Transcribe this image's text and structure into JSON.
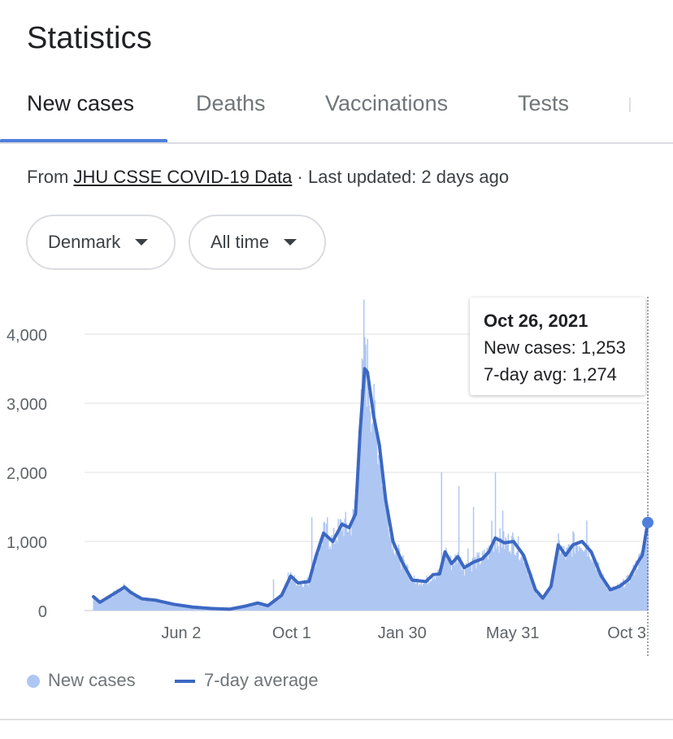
{
  "header": {
    "title": "Statistics"
  },
  "tabs": [
    {
      "label": "New cases",
      "active": true
    },
    {
      "label": "Deaths",
      "active": false
    },
    {
      "label": "Vaccinations",
      "active": false
    },
    {
      "label": "Tests",
      "active": false
    }
  ],
  "source": {
    "prefix": "From ",
    "link_text": "JHU CSSE COVID-19 Data",
    "suffix": " · Last updated: 2 days ago"
  },
  "filters": {
    "region": "Denmark",
    "range": "All time"
  },
  "tooltip": {
    "date": "Oct 26, 2021",
    "new_cases_label": "New cases:",
    "new_cases_value": "1,253",
    "avg_label": "7-day avg:",
    "avg_value": "1,274"
  },
  "legend": {
    "bars_label": "New cases",
    "line_label": "7-day average"
  },
  "colors": {
    "bars": "#aec6f2",
    "line": "#3c68c2",
    "accent": "#4f7fdb"
  },
  "chart_data": {
    "type": "bar",
    "ylim": [
      0,
      4000
    ],
    "y_ticks": [
      "0",
      "1,000",
      "2,000",
      "3,000",
      "4,000"
    ],
    "x_tick_labels": [
      "Jun 2",
      "Oct 1",
      "Jan 30",
      "May 31",
      "Oct 3"
    ],
    "x_tick_dates": [
      "2020-06-02",
      "2020-10-01",
      "2021-01-30",
      "2021-05-31",
      "2021-10-03"
    ],
    "x_start": "2020-02-27",
    "x_end": "2021-10-26",
    "avg_keypoints": [
      [
        "2020-02-27",
        200
      ],
      [
        "2020-03-05",
        120
      ],
      [
        "2020-03-15",
        200
      ],
      [
        "2020-03-25",
        280
      ],
      [
        "2020-04-01",
        340
      ],
      [
        "2020-04-08",
        260
      ],
      [
        "2020-04-20",
        170
      ],
      [
        "2020-05-05",
        150
      ],
      [
        "2020-05-25",
        90
      ],
      [
        "2020-06-15",
        50
      ],
      [
        "2020-07-05",
        30
      ],
      [
        "2020-07-25",
        20
      ],
      [
        "2020-08-10",
        60
      ],
      [
        "2020-08-25",
        110
      ],
      [
        "2020-09-05",
        70
      ],
      [
        "2020-09-20",
        220
      ],
      [
        "2020-09-30",
        500
      ],
      [
        "2020-10-08",
        400
      ],
      [
        "2020-10-20",
        420
      ],
      [
        "2020-10-28",
        800
      ],
      [
        "2020-11-05",
        1120
      ],
      [
        "2020-11-15",
        1000
      ],
      [
        "2020-11-25",
        1250
      ],
      [
        "2020-12-03",
        1200
      ],
      [
        "2020-12-10",
        1400
      ],
      [
        "2020-12-15",
        2600
      ],
      [
        "2020-12-20",
        3500
      ],
      [
        "2020-12-23",
        3450
      ],
      [
        "2020-12-30",
        2800
      ],
      [
        "2021-01-05",
        2400
      ],
      [
        "2021-01-12",
        1600
      ],
      [
        "2021-01-20",
        1000
      ],
      [
        "2021-01-30",
        700
      ],
      [
        "2021-02-10",
        440
      ],
      [
        "2021-02-25",
        420
      ],
      [
        "2021-03-05",
        520
      ],
      [
        "2021-03-12",
        530
      ],
      [
        "2021-03-18",
        850
      ],
      [
        "2021-03-25",
        680
      ],
      [
        "2021-04-01",
        780
      ],
      [
        "2021-04-08",
        620
      ],
      [
        "2021-04-18",
        700
      ],
      [
        "2021-04-28",
        750
      ],
      [
        "2021-05-05",
        850
      ],
      [
        "2021-05-12",
        1050
      ],
      [
        "2021-05-22",
        980
      ],
      [
        "2021-06-01",
        1000
      ],
      [
        "2021-06-12",
        800
      ],
      [
        "2021-06-25",
        300
      ],
      [
        "2021-07-03",
        180
      ],
      [
        "2021-07-12",
        350
      ],
      [
        "2021-07-20",
        950
      ],
      [
        "2021-07-28",
        800
      ],
      [
        "2021-08-05",
        950
      ],
      [
        "2021-08-15",
        1000
      ],
      [
        "2021-08-25",
        850
      ],
      [
        "2021-09-05",
        500
      ],
      [
        "2021-09-15",
        300
      ],
      [
        "2021-09-25",
        350
      ],
      [
        "2021-10-05",
        450
      ],
      [
        "2021-10-15",
        700
      ],
      [
        "2021-10-20",
        800
      ],
      [
        "2021-10-26",
        1274
      ]
    ],
    "spikes": [
      [
        "2020-12-09",
        1600
      ],
      [
        "2020-12-13",
        2100
      ],
      [
        "2020-12-17",
        3650
      ],
      [
        "2020-12-19",
        4500
      ],
      [
        "2020-12-21",
        3850
      ],
      [
        "2020-12-28",
        2700
      ],
      [
        "2021-01-04",
        2250
      ],
      [
        "2021-01-08",
        1800
      ],
      [
        "2021-02-05",
        650
      ],
      [
        "2021-03-14",
        2000
      ],
      [
        "2021-04-02",
        1800
      ],
      [
        "2021-04-12",
        900
      ],
      [
        "2021-04-18",
        1500
      ],
      [
        "2021-05-08",
        1300
      ],
      [
        "2021-05-12",
        2000
      ],
      [
        "2021-05-20",
        1450
      ],
      [
        "2021-08-05",
        1150
      ],
      [
        "2021-08-20",
        1300
      ],
      [
        "2020-10-23",
        1350
      ],
      [
        "2020-11-09",
        1350
      ],
      [
        "2020-09-11",
        450
      ],
      [
        "2020-09-27",
        550
      ]
    ],
    "highlight_point": {
      "date": "2021-10-26",
      "new_cases": 1253,
      "avg": 1274
    }
  }
}
